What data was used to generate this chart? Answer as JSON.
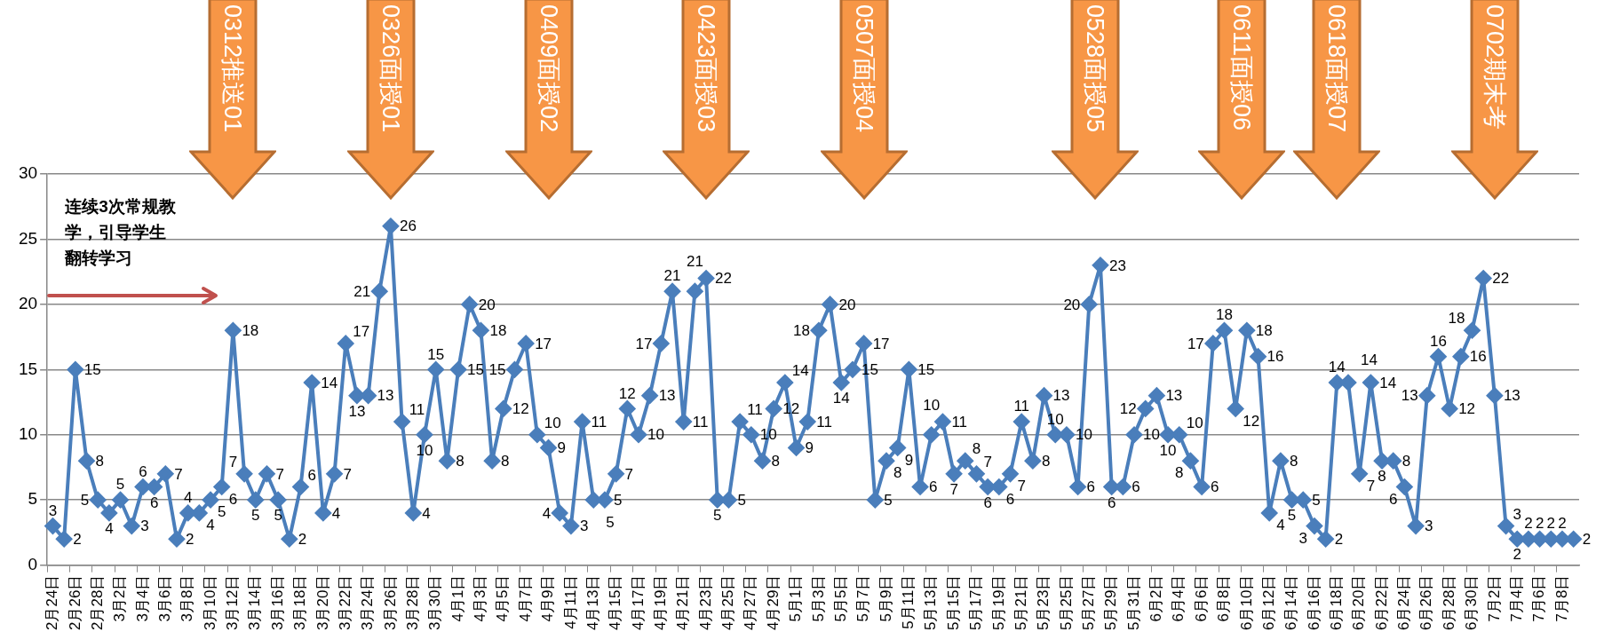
{
  "chart_data": {
    "type": "line",
    "categories": [
      "2月24日",
      null,
      "2月26日",
      null,
      "2月28日",
      null,
      "3月2日",
      null,
      "3月4日",
      null,
      "3月6日",
      null,
      "3月8日",
      null,
      "3月10日",
      null,
      "3月12日",
      null,
      "3月14日",
      null,
      "3月16日",
      null,
      "3月18日",
      null,
      "3月20日",
      null,
      "3月22日",
      null,
      "3月24日",
      null,
      "3月26日",
      null,
      "3月28日",
      null,
      "3月30日",
      null,
      "4月1日",
      null,
      "4月3日",
      null,
      "4月5日",
      null,
      "4月7日",
      null,
      "4月9日",
      null,
      "4月11日",
      null,
      "4月13日",
      null,
      "4月15日",
      null,
      "4月17日",
      null,
      "4月19日",
      null,
      "4月21日",
      null,
      "4月23日",
      null,
      "4月25日",
      null,
      "4月27日",
      null,
      "4月29日",
      null,
      "5月1日",
      null,
      "5月3日",
      null,
      "5月5日",
      null,
      "5月7日",
      null,
      "5月9日",
      null,
      "5月11日",
      null,
      "5月13日",
      null,
      "5月15日",
      null,
      "5月17日",
      null,
      "5月19日",
      null,
      "5月21日",
      null,
      "5月23日",
      null,
      "5月25日",
      null,
      "5月27日",
      null,
      "5月29日",
      null,
      "5月31日",
      null,
      "6月2日",
      null,
      "6月4日",
      null,
      "6月6日",
      null,
      "6月8日",
      null,
      "6月10日",
      null,
      "6月12日",
      null,
      "6月14日",
      null,
      "6月16日",
      null,
      "6月18日",
      null,
      "6月20日",
      null,
      "6月22日",
      null,
      "6月24日",
      null,
      "6月26日",
      null,
      "6月28日",
      null,
      "6月30日",
      null,
      "7月2日",
      null,
      "7月4日",
      null,
      "7月6日",
      null,
      "7月8日",
      null
    ],
    "series": [
      {
        "color": "#4a7ebb",
        "values": [
          3,
          2,
          15,
          8,
          5,
          4,
          5,
          3,
          6,
          6,
          7,
          2,
          4,
          4,
          5,
          6,
          18,
          7,
          5,
          7,
          5,
          2,
          6,
          14,
          4,
          7,
          17,
          13,
          13,
          21,
          26,
          11,
          4,
          10,
          15,
          8,
          15,
          20,
          18,
          8,
          12,
          15,
          17,
          10,
          9,
          4,
          3,
          11,
          5,
          5,
          7,
          12,
          10,
          13,
          17,
          21,
          11,
          21,
          22,
          5,
          5,
          11,
          10,
          8,
          12,
          14,
          9,
          11,
          18,
          20,
          14,
          15,
          17,
          5,
          8,
          9,
          15,
          6,
          10,
          11,
          7,
          8,
          7,
          6,
          6,
          7,
          11,
          8,
          13,
          10,
          10,
          6,
          20,
          23,
          6,
          6,
          10,
          12,
          13,
          10,
          10,
          8,
          6,
          17,
          18,
          12,
          18,
          16,
          4,
          8,
          5,
          5,
          3,
          2,
          14,
          14,
          7,
          14,
          8,
          8,
          6,
          3,
          13,
          16,
          12,
          16,
          18,
          22,
          13,
          3,
          2,
          2,
          2,
          2,
          2,
          2
        ]
      }
    ],
    "ylim": [
      0,
      30
    ],
    "yticks": [
      0,
      5,
      10,
      15,
      20,
      25,
      30
    ],
    "grid": "y",
    "marker": "diamond",
    "data_labels": true,
    "annotations": [
      "连续3次常规教学，引导学生翻转学习",
      "0312推送01",
      "0326面授01",
      "0409面授02",
      "0423面授03",
      "0507面授04",
      "0528面授05",
      "0611面授06",
      "0618面授07",
      "0702期末考"
    ]
  }
}
